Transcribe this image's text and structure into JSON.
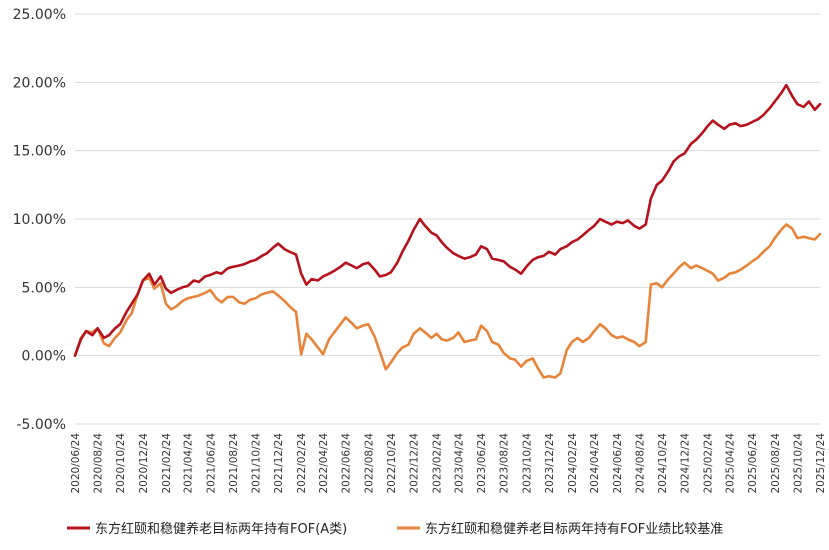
{
  "chart_data": {
    "type": "line",
    "title": "",
    "xlabel": "",
    "ylabel": "",
    "ylim": [
      -5,
      25
    ],
    "y_ticks": [
      25,
      20,
      15,
      10,
      5,
      0,
      -5
    ],
    "y_tick_labels": [
      "25.00%",
      "20.00%",
      "15.00%",
      "10.00%",
      "5.00%",
      "0.00%",
      "-5.00%"
    ],
    "x_tick_labels": [
      "2020/06/24",
      "2020/08/24",
      "2020/10/24",
      "2020/12/24",
      "2021/02/24",
      "2021/04/24",
      "2021/06/24",
      "2021/08/24",
      "2021/10/24",
      "2021/12/24",
      "2022/02/24",
      "2022/04/24",
      "2022/06/24",
      "2022/08/24",
      "2022/10/24",
      "2022/12/24",
      "2023/02/24",
      "2023/04/24",
      "2023/06/24",
      "2023/08/24",
      "2023/10/24",
      "2023/12/24",
      "2024/02/24",
      "2024/04/24",
      "2024/06/24",
      "2024/08/24",
      "2024/10/24",
      "2024/12/24",
      "2025/02/24",
      "2025/04/24",
      "2025/06/24",
      "2025/08/24",
      "2025/10/24",
      "2025/12/24"
    ],
    "grid": "horizontal",
    "legend_position": "bottom",
    "series": [
      {
        "name": "东方红颐和稳健养老目标两年持有FOF(A类)",
        "color": "#b5121b",
        "points": [
          [
            "2020/06/24",
            0.0
          ],
          [
            "2020/07/10",
            1.2
          ],
          [
            "2020/07/24",
            1.8
          ],
          [
            "2020/08/10",
            1.5
          ],
          [
            "2020/08/24",
            2.0
          ],
          [
            "2020/09/10",
            1.3
          ],
          [
            "2020/09/24",
            1.5
          ],
          [
            "2020/10/10",
            2.0
          ],
          [
            "2020/10/24",
            2.3
          ],
          [
            "2020/11/10",
            3.2
          ],
          [
            "2020/11/24",
            3.8
          ],
          [
            "2020/12/10",
            4.5
          ],
          [
            "2020/12/24",
            5.5
          ],
          [
            "2021/01/10",
            6.0
          ],
          [
            "2021/01/24",
            5.2
          ],
          [
            "2021/02/10",
            5.8
          ],
          [
            "2021/02/24",
            4.9
          ],
          [
            "2021/03/10",
            4.6
          ],
          [
            "2021/03/24",
            4.8
          ],
          [
            "2021/04/10",
            5.0
          ],
          [
            "2021/04/24",
            5.1
          ],
          [
            "2021/05/10",
            5.5
          ],
          [
            "2021/05/24",
            5.4
          ],
          [
            "2021/06/10",
            5.8
          ],
          [
            "2021/06/24",
            5.9
          ],
          [
            "2021/07/10",
            6.1
          ],
          [
            "2021/07/24",
            6.0
          ],
          [
            "2021/08/10",
            6.4
          ],
          [
            "2021/08/24",
            6.5
          ],
          [
            "2021/09/10",
            6.6
          ],
          [
            "2021/09/24",
            6.7
          ],
          [
            "2021/10/10",
            6.9
          ],
          [
            "2021/10/24",
            7.0
          ],
          [
            "2021/11/10",
            7.3
          ],
          [
            "2021/11/24",
            7.5
          ],
          [
            "2021/12/10",
            7.9
          ],
          [
            "2021/12/24",
            8.2
          ],
          [
            "2022/01/10",
            7.8
          ],
          [
            "2022/01/24",
            7.6
          ],
          [
            "2022/02/10",
            7.4
          ],
          [
            "2022/02/24",
            6.0
          ],
          [
            "2022/03/10",
            5.2
          ],
          [
            "2022/03/24",
            5.6
          ],
          [
            "2022/04/10",
            5.5
          ],
          [
            "2022/04/24",
            5.8
          ],
          [
            "2022/05/10",
            6.0
          ],
          [
            "2022/05/24",
            6.2
          ],
          [
            "2022/06/10",
            6.5
          ],
          [
            "2022/06/24",
            6.8
          ],
          [
            "2022/07/10",
            6.6
          ],
          [
            "2022/07/24",
            6.4
          ],
          [
            "2022/08/10",
            6.7
          ],
          [
            "2022/08/24",
            6.8
          ],
          [
            "2022/09/10",
            6.3
          ],
          [
            "2022/09/24",
            5.8
          ],
          [
            "2022/10/10",
            5.9
          ],
          [
            "2022/10/24",
            6.1
          ],
          [
            "2022/11/10",
            6.8
          ],
          [
            "2022/11/24",
            7.6
          ],
          [
            "2022/12/10",
            8.4
          ],
          [
            "2022/12/24",
            9.2
          ],
          [
            "2023/01/10",
            10.0
          ],
          [
            "2023/01/24",
            9.5
          ],
          [
            "2023/02/10",
            9.0
          ],
          [
            "2023/02/24",
            8.8
          ],
          [
            "2023/03/10",
            8.3
          ],
          [
            "2023/03/24",
            7.9
          ],
          [
            "2023/04/10",
            7.5
          ],
          [
            "2023/04/24",
            7.3
          ],
          [
            "2023/05/10",
            7.1
          ],
          [
            "2023/05/24",
            7.2
          ],
          [
            "2023/06/10",
            7.4
          ],
          [
            "2023/06/24",
            8.0
          ],
          [
            "2023/07/10",
            7.8
          ],
          [
            "2023/07/24",
            7.1
          ],
          [
            "2023/08/10",
            7.0
          ],
          [
            "2023/08/24",
            6.9
          ],
          [
            "2023/09/10",
            6.5
          ],
          [
            "2023/09/24",
            6.3
          ],
          [
            "2023/10/10",
            6.0
          ],
          [
            "2023/10/24",
            6.5
          ],
          [
            "2023/11/10",
            7.0
          ],
          [
            "2023/11/24",
            7.2
          ],
          [
            "2023/12/10",
            7.3
          ],
          [
            "2023/12/24",
            7.6
          ],
          [
            "2024/01/10",
            7.4
          ],
          [
            "2024/01/24",
            7.8
          ],
          [
            "2024/02/10",
            8.0
          ],
          [
            "2024/02/24",
            8.3
          ],
          [
            "2024/03/10",
            8.5
          ],
          [
            "2024/03/24",
            8.8
          ],
          [
            "2024/04/10",
            9.2
          ],
          [
            "2024/04/24",
            9.5
          ],
          [
            "2024/05/10",
            10.0
          ],
          [
            "2024/05/24",
            9.8
          ],
          [
            "2024/06/10",
            9.6
          ],
          [
            "2024/06/24",
            9.8
          ],
          [
            "2024/07/10",
            9.7
          ],
          [
            "2024/07/24",
            9.9
          ],
          [
            "2024/08/10",
            9.5
          ],
          [
            "2024/08/24",
            9.3
          ],
          [
            "2024/09/10",
            9.6
          ],
          [
            "2024/09/24",
            11.5
          ],
          [
            "2024/10/10",
            12.5
          ],
          [
            "2024/10/24",
            12.8
          ],
          [
            "2024/11/10",
            13.5
          ],
          [
            "2024/11/24",
            14.2
          ],
          [
            "2024/12/10",
            14.6
          ],
          [
            "2024/12/24",
            14.8
          ],
          [
            "2025/01/10",
            15.5
          ],
          [
            "2025/01/24",
            15.8
          ],
          [
            "2025/02/10",
            16.3
          ],
          [
            "2025/02/24",
            16.8
          ],
          [
            "2025/03/10",
            17.2
          ],
          [
            "2025/03/24",
            16.9
          ],
          [
            "2025/04/10",
            16.6
          ],
          [
            "2025/04/24",
            16.9
          ],
          [
            "2025/05/10",
            17.0
          ],
          [
            "2025/05/24",
            16.8
          ],
          [
            "2025/06/10",
            16.9
          ],
          [
            "2025/06/24",
            17.1
          ],
          [
            "2025/07/10",
            17.3
          ],
          [
            "2025/07/24",
            17.6
          ],
          [
            "2025/08/10",
            18.1
          ],
          [
            "2025/08/24",
            18.6
          ],
          [
            "2025/09/10",
            19.2
          ],
          [
            "2025/09/24",
            19.8
          ],
          [
            "2025/10/10",
            19.0
          ],
          [
            "2025/10/24",
            18.4
          ],
          [
            "2025/11/10",
            18.2
          ],
          [
            "2025/11/24",
            18.6
          ],
          [
            "2025/12/10",
            18.0
          ],
          [
            "2025/12/24",
            18.4
          ]
        ]
      },
      {
        "name": "东方红颐和稳健养老目标两年持有FOF业绩比较基准",
        "color": "#e8843a",
        "points": [
          [
            "2020/06/24",
            0.0
          ],
          [
            "2020/07/10",
            1.3
          ],
          [
            "2020/07/24",
            1.8
          ],
          [
            "2020/08/10",
            1.7
          ],
          [
            "2020/08/24",
            2.0
          ],
          [
            "2020/09/10",
            0.9
          ],
          [
            "2020/09/24",
            0.7
          ],
          [
            "2020/10/10",
            1.3
          ],
          [
            "2020/10/24",
            1.7
          ],
          [
            "2020/11/10",
            2.6
          ],
          [
            "2020/11/24",
            3.1
          ],
          [
            "2020/12/10",
            4.5
          ],
          [
            "2020/12/24",
            5.5
          ],
          [
            "2021/01/10",
            5.7
          ],
          [
            "2021/01/24",
            4.9
          ],
          [
            "2021/02/10",
            5.3
          ],
          [
            "2021/02/24",
            3.8
          ],
          [
            "2021/03/10",
            3.4
          ],
          [
            "2021/03/24",
            3.6
          ],
          [
            "2021/04/10",
            4.0
          ],
          [
            "2021/04/24",
            4.2
          ],
          [
            "2021/05/10",
            4.3
          ],
          [
            "2021/05/24",
            4.4
          ],
          [
            "2021/06/10",
            4.6
          ],
          [
            "2021/06/24",
            4.8
          ],
          [
            "2021/07/10",
            4.2
          ],
          [
            "2021/07/24",
            3.9
          ],
          [
            "2021/08/10",
            4.3
          ],
          [
            "2021/08/24",
            4.3
          ],
          [
            "2021/09/10",
            3.9
          ],
          [
            "2021/09/24",
            3.8
          ],
          [
            "2021/10/10",
            4.1
          ],
          [
            "2021/10/24",
            4.2
          ],
          [
            "2021/11/10",
            4.5
          ],
          [
            "2021/11/24",
            4.6
          ],
          [
            "2021/12/10",
            4.7
          ],
          [
            "2021/12/24",
            4.4
          ],
          [
            "2022/01/10",
            4.0
          ],
          [
            "2022/01/24",
            3.6
          ],
          [
            "2022/02/10",
            3.2
          ],
          [
            "2022/02/24",
            0.1
          ],
          [
            "2022/03/10",
            1.6
          ],
          [
            "2022/03/24",
            1.2
          ],
          [
            "2022/04/10",
            0.6
          ],
          [
            "2022/04/24",
            0.1
          ],
          [
            "2022/05/10",
            1.2
          ],
          [
            "2022/05/24",
            1.7
          ],
          [
            "2022/06/10",
            2.3
          ],
          [
            "2022/06/24",
            2.8
          ],
          [
            "2022/07/10",
            2.4
          ],
          [
            "2022/07/24",
            2.0
          ],
          [
            "2022/08/10",
            2.2
          ],
          [
            "2022/08/24",
            2.3
          ],
          [
            "2022/09/10",
            1.4
          ],
          [
            "2022/09/24",
            0.3
          ],
          [
            "2022/10/10",
            -1.0
          ],
          [
            "2022/10/24",
            -0.5
          ],
          [
            "2022/11/10",
            0.2
          ],
          [
            "2022/11/24",
            0.6
          ],
          [
            "2022/12/10",
            0.8
          ],
          [
            "2022/12/24",
            1.6
          ],
          [
            "2023/01/10",
            2.0
          ],
          [
            "2023/01/24",
            1.7
          ],
          [
            "2023/02/10",
            1.3
          ],
          [
            "2023/02/24",
            1.6
          ],
          [
            "2023/03/10",
            1.2
          ],
          [
            "2023/03/24",
            1.1
          ],
          [
            "2023/04/10",
            1.3
          ],
          [
            "2023/04/24",
            1.7
          ],
          [
            "2023/05/10",
            1.0
          ],
          [
            "2023/05/24",
            1.1
          ],
          [
            "2023/06/10",
            1.2
          ],
          [
            "2023/06/24",
            2.2
          ],
          [
            "2023/07/10",
            1.8
          ],
          [
            "2023/07/24",
            1.0
          ],
          [
            "2023/08/10",
            0.8
          ],
          [
            "2023/08/24",
            0.2
          ],
          [
            "2023/09/10",
            -0.2
          ],
          [
            "2023/09/24",
            -0.3
          ],
          [
            "2023/10/10",
            -0.8
          ],
          [
            "2023/10/24",
            -0.4
          ],
          [
            "2023/11/10",
            -0.2
          ],
          [
            "2023/11/24",
            -0.9
          ],
          [
            "2023/12/10",
            -1.6
          ],
          [
            "2023/12/24",
            -1.5
          ],
          [
            "2024/01/10",
            -1.6
          ],
          [
            "2024/01/24",
            -1.3
          ],
          [
            "2024/02/10",
            0.4
          ],
          [
            "2024/02/24",
            1.0
          ],
          [
            "2024/03/10",
            1.3
          ],
          [
            "2024/03/24",
            1.0
          ],
          [
            "2024/04/10",
            1.3
          ],
          [
            "2024/04/24",
            1.8
          ],
          [
            "2024/05/10",
            2.3
          ],
          [
            "2024/05/24",
            2.0
          ],
          [
            "2024/06/10",
            1.5
          ],
          [
            "2024/06/24",
            1.3
          ],
          [
            "2024/07/10",
            1.4
          ],
          [
            "2024/07/24",
            1.2
          ],
          [
            "2024/08/10",
            1.0
          ],
          [
            "2024/08/24",
            0.7
          ],
          [
            "2024/09/10",
            1.0
          ],
          [
            "2024/09/24",
            5.2
          ],
          [
            "2024/10/10",
            5.3
          ],
          [
            "2024/10/24",
            5.0
          ],
          [
            "2024/11/10",
            5.6
          ],
          [
            "2024/11/24",
            6.0
          ],
          [
            "2024/12/10",
            6.5
          ],
          [
            "2024/12/24",
            6.8
          ],
          [
            "2025/01/10",
            6.4
          ],
          [
            "2025/01/24",
            6.6
          ],
          [
            "2025/02/10",
            6.4
          ],
          [
            "2025/02/24",
            6.2
          ],
          [
            "2025/03/10",
            6.0
          ],
          [
            "2025/03/24",
            5.5
          ],
          [
            "2025/04/10",
            5.7
          ],
          [
            "2025/04/24",
            6.0
          ],
          [
            "2025/05/10",
            6.1
          ],
          [
            "2025/05/24",
            6.3
          ],
          [
            "2025/06/10",
            6.6
          ],
          [
            "2025/06/24",
            6.9
          ],
          [
            "2025/07/10",
            7.2
          ],
          [
            "2025/07/24",
            7.6
          ],
          [
            "2025/08/10",
            8.0
          ],
          [
            "2025/08/24",
            8.6
          ],
          [
            "2025/09/10",
            9.2
          ],
          [
            "2025/09/24",
            9.6
          ],
          [
            "2025/10/10",
            9.3
          ],
          [
            "2025/10/24",
            8.6
          ],
          [
            "2025/11/10",
            8.7
          ],
          [
            "2025/11/24",
            8.6
          ],
          [
            "2025/12/10",
            8.5
          ],
          [
            "2025/12/24",
            8.9
          ]
        ]
      }
    ]
  }
}
